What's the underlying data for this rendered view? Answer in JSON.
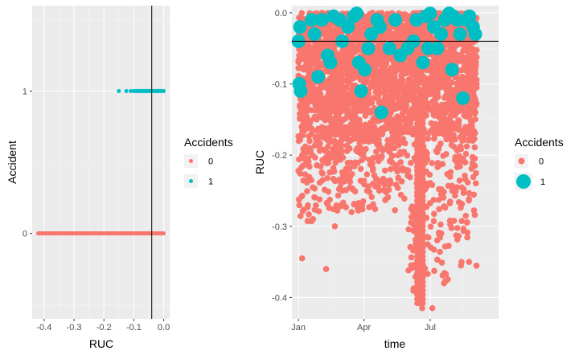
{
  "chart_data": [
    {
      "type": "scatter",
      "xlabel": "RUC",
      "ylabel": "Accident",
      "xlim": [
        -0.44,
        0.02
      ],
      "ylim": [
        -0.6,
        1.6
      ],
      "xticks": [
        -0.4,
        -0.3,
        -0.2,
        -0.1,
        0.0
      ],
      "xtick_labels": [
        "-0.4",
        "-0.3",
        "-0.2",
        "-0.1",
        "0.0"
      ],
      "yticks": [
        0,
        1
      ],
      "ytick_labels": [
        "0",
        "1"
      ],
      "vline": -0.04,
      "grid": true,
      "legend": {
        "title": "Accidents",
        "position": "right",
        "entries": [
          "0",
          "1"
        ]
      },
      "colors": {
        "0": "#F8766D",
        "1": "#00BFC4"
      },
      "series": [
        {
          "key": "0",
          "y": 0,
          "x_range": [
            -0.42,
            0.0
          ]
        },
        {
          "key": "1",
          "y": 1,
          "x": [
            -0.15,
            -0.125,
            -0.11,
            -0.1,
            -0.09,
            -0.08,
            -0.07,
            -0.06,
            -0.05,
            -0.04,
            -0.03,
            -0.02,
            -0.01,
            0.0
          ]
        }
      ]
    },
    {
      "type": "scatter",
      "xlabel": "time",
      "ylabel": "RUC",
      "xlim": [
        -9,
        275
      ],
      "ylim": [
        -0.43,
        0.01
      ],
      "x_unit": "day of year",
      "xticks": [
        0,
        90,
        181
      ],
      "xtick_labels": [
        "Jan",
        "Apr",
        "Jul"
      ],
      "yticks": [
        0.0,
        -0.1,
        -0.2,
        -0.3,
        -0.4
      ],
      "ytick_labels": [
        "0.0",
        "-0.1",
        "-0.2",
        "-0.3",
        "-0.4"
      ],
      "hline": -0.04,
      "grid": true,
      "legend": {
        "title": "Accidents",
        "position": "right",
        "entries": [
          "0",
          "1"
        ]
      },
      "colors": {
        "0": "#F8766D",
        "1": "#00BFC4"
      },
      "series": [
        {
          "key": "0",
          "note_range_x": [
            0,
            245
          ]
        },
        {
          "key": "1",
          "points": [
            [
              0,
              -0.04
            ],
            [
              2,
              -0.02
            ],
            [
              1,
              -0.1
            ],
            [
              3,
              -0.11
            ],
            [
              18,
              -0.01
            ],
            [
              22,
              -0.03
            ],
            [
              27,
              -0.09
            ],
            [
              32,
              -0.01
            ],
            [
              40,
              -0.06
            ],
            [
              44,
              -0.07
            ],
            [
              48,
              -0.005
            ],
            [
              57,
              -0.01
            ],
            [
              60,
              -0.04
            ],
            [
              68,
              -0.02
            ],
            [
              76,
              -0.005
            ],
            [
              80,
              -0.001
            ],
            [
              83,
              -0.07
            ],
            [
              86,
              -0.11
            ],
            [
              91,
              -0.08
            ],
            [
              96,
              -0.05
            ],
            [
              100,
              -0.03
            ],
            [
              108,
              -0.01
            ],
            [
              112,
              -0.02
            ],
            [
              114,
              -0.14
            ],
            [
              125,
              -0.05
            ],
            [
              133,
              -0.01
            ],
            [
              140,
              -0.06
            ],
            [
              150,
              -0.05
            ],
            [
              158,
              -0.04
            ],
            [
              162,
              -0.01
            ],
            [
              171,
              -0.07
            ],
            [
              175,
              -0.005
            ],
            [
              178,
              -0.05
            ],
            [
              181,
              -0.001
            ],
            [
              186,
              -0.02
            ],
            [
              191,
              -0.05
            ],
            [
              196,
              -0.03
            ],
            [
              201,
              -0.01
            ],
            [
              207,
              -0.001
            ],
            [
              211,
              -0.08
            ],
            [
              213,
              -0.005
            ],
            [
              218,
              -0.01
            ],
            [
              222,
              -0.03
            ],
            [
              226,
              -0.12
            ],
            [
              230,
              -0.01
            ],
            [
              235,
              -0.005
            ],
            [
              240,
              -0.02
            ],
            [
              243,
              -0.03
            ]
          ]
        }
      ]
    }
  ]
}
